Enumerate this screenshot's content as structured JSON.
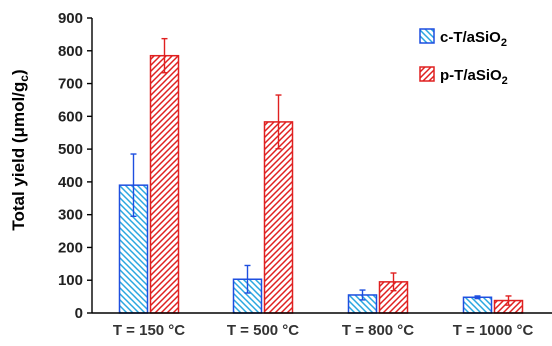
{
  "chart_data": {
    "type": "bar",
    "title": "",
    "ylabel": {
      "main": "Total yield (μmol/g",
      "sub": "c",
      "close": ")"
    },
    "xlabel": "",
    "ylim": [
      0,
      900
    ],
    "yticks": [
      "0",
      "100",
      "200",
      "300",
      "400",
      "500",
      "600",
      "700",
      "800",
      "900"
    ],
    "categories": [
      "T = 150 °C",
      "T = 500 °C",
      "T = 800 °C",
      "T = 1000 °C"
    ],
    "series": [
      {
        "name": {
          "main": "c-T/aSiO",
          "sub": "2"
        },
        "values": [
          390,
          103,
          55,
          48
        ],
        "errors": [
          95,
          42,
          15,
          4
        ],
        "color": "#1e4fe0",
        "hatch": "#2aa7e0"
      },
      {
        "name": {
          "main": "p-T/aSiO",
          "sub": "2"
        },
        "values": [
          785,
          583,
          95,
          38
        ],
        "errors": [
          52,
          82,
          27,
          14
        ],
        "color": "#e02020",
        "hatch": "#e02020"
      }
    ],
    "legend_position": "top-right",
    "grid": false
  }
}
